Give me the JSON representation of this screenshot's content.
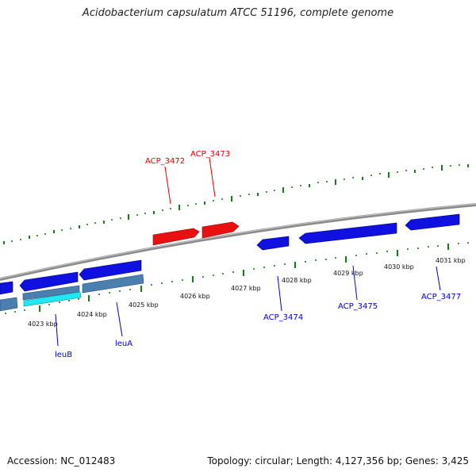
{
  "header": {
    "title": "Acidobacterium capsulatum ATCC 51196, complete genome"
  },
  "footer": {
    "accession": "Accession: NC_012483",
    "summary": "Topology: circular; Length: 4,127,356 bp; Genes: 3,425"
  },
  "colors": {
    "forward_gene": "#e81010",
    "reverse_gene": "#1010e0",
    "rna_gene": "#4a7fb0",
    "highlight_gene": "#20e8f0",
    "backbone": "#888888",
    "tick": "#1a7a1a",
    "forward_label": "#e00000",
    "reverse_label": "#0000c8"
  },
  "scale": {
    "tick_labels": [
      "4023 kbp",
      "4024 kbp",
      "4025 kbp",
      "4026 kbp",
      "4027 kbp",
      "4028 kbp",
      "4029 kbp",
      "4030 kbp",
      "4031 kbp"
    ]
  },
  "gene_labels": {
    "forward": [
      "ACP_3472",
      "ACP_3473"
    ],
    "reverse": [
      "leuB",
      "leuA",
      "ACP_3474",
      "ACP_3475",
      "ACP_3477"
    ]
  }
}
